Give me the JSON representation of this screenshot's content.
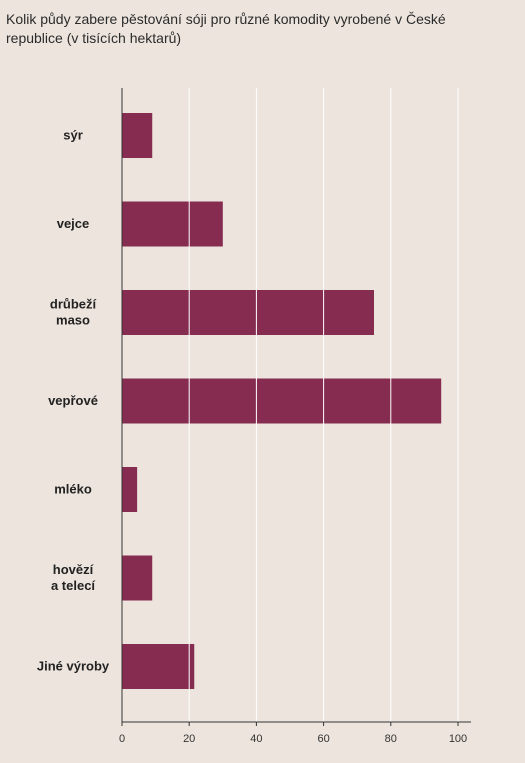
{
  "chart_data": {
    "type": "bar",
    "orientation": "horizontal",
    "title": "Kolik půdy zabere pěstování sóji pro různé komodity vyrobené v České republice (v tisících hektarů)",
    "categories": [
      [
        "sýr"
      ],
      [
        "vejce"
      ],
      [
        "drůbeží",
        "maso"
      ],
      [
        "vepřové"
      ],
      [
        "mléko"
      ],
      [
        "hovězí",
        "a telecí"
      ],
      [
        "Jiné výroby"
      ]
    ],
    "values": [
      9,
      30,
      75,
      95,
      4.5,
      9,
      21.5
    ],
    "xlim": [
      0,
      100
    ],
    "xticks": [
      0,
      20,
      40,
      60,
      80,
      100
    ],
    "grid": "vertical",
    "colors": {
      "bar": "#862c50",
      "grid": "#ffffff",
      "axis": "#333333"
    }
  }
}
